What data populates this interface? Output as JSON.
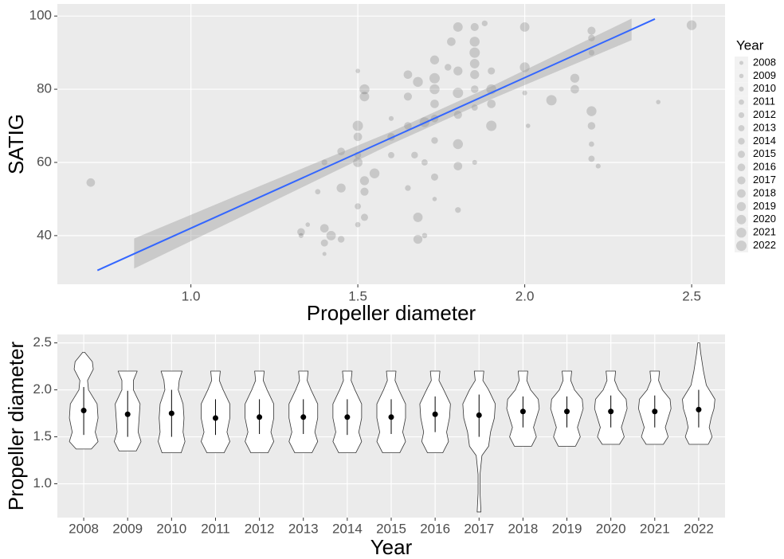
{
  "chart_data": [
    {
      "type": "scatter",
      "x_label": "Propeller diameter",
      "y_label": "SATIG",
      "legend_title": "Year",
      "xlim": [
        0.6,
        2.6
      ],
      "ylim": [
        26.7,
        103.3
      ],
      "xticks": [
        {
          "value": 1,
          "label": "1.0"
        },
        1.5,
        {
          "value": 2,
          "label": "2.0"
        },
        2.5
      ],
      "yticks": [
        40,
        60,
        80,
        100
      ],
      "grid": true,
      "color": "#000000",
      "legend_position": "right",
      "size_legend": [
        2008,
        2009,
        2010,
        2011,
        2012,
        2013,
        2014,
        2015,
        2016,
        2017,
        2018,
        2019,
        2020,
        2021,
        2022
      ],
      "points": {
        "x": [
          1.33,
          1.33,
          1.35,
          1.4,
          1.4,
          1.4,
          1.42,
          1.4,
          1.38,
          1.45,
          1.45,
          1.45,
          1.5,
          1.5,
          1.5,
          1.5,
          1.5,
          1.5,
          1.52,
          1.52,
          1.52,
          1.52,
          1.52,
          1.5,
          1.55,
          1.6,
          1.6,
          1.6,
          1.65,
          1.65,
          1.65,
          1.65,
          1.68,
          1.68,
          1.68,
          1.67,
          1.7,
          1.7,
          1.7,
          1.73,
          1.73,
          1.73,
          1.73,
          1.73,
          1.73,
          1.73,
          1.73,
          1.8,
          1.8,
          1.8,
          1.8,
          1.8,
          1.8,
          1.8,
          1.78,
          1.77,
          1.85,
          1.85,
          1.85,
          1.85,
          1.85,
          1.85,
          1.85,
          1.85,
          1.88,
          1.9,
          1.9,
          1.9,
          1.9,
          2.0,
          2.0,
          2.0,
          2.01,
          2.08,
          2.15,
          2.15,
          2.2,
          2.2,
          2.2,
          2.2,
          2.2,
          2.2,
          2.2,
          2.22,
          0.7,
          2.5,
          2.4
        ],
        "y": [
          41,
          40,
          43,
          60,
          42,
          38,
          40,
          35,
          52,
          39,
          63,
          53,
          70,
          67,
          60,
          48,
          43,
          85,
          80,
          78,
          55,
          52,
          45,
          62,
          57,
          62,
          67,
          72,
          84,
          78,
          70,
          53,
          82,
          45,
          39,
          62,
          71,
          60,
          40,
          88,
          83,
          80,
          76,
          72,
          66,
          56,
          50,
          97,
          85,
          79,
          73,
          65,
          59,
          47,
          93,
          86,
          97,
          93,
          90,
          87,
          84,
          80,
          75,
          60,
          98,
          85,
          80,
          76,
          70,
          97,
          86,
          79,
          70,
          77,
          83,
          80,
          96,
          94,
          90,
          74,
          70,
          65,
          61,
          59,
          54.5,
          97.5,
          76.5
        ],
        "year": [
          2016,
          2010,
          2009,
          2012,
          2018,
          2015,
          2020,
          2008,
          2011,
          2014,
          2016,
          2019,
          2022,
          2018,
          2020,
          2013,
          2011,
          2009,
          2021,
          2020,
          2019,
          2017,
          2015,
          2014,
          2021,
          2013,
          2016,
          2010,
          2018,
          2017,
          2016,
          2012,
          2021,
          2020,
          2019,
          2014,
          2021,
          2013,
          2011,
          2019,
          2022,
          2021,
          2018,
          2016,
          2014,
          2015,
          2009,
          2020,
          2019,
          2022,
          2017,
          2021,
          2018,
          2012,
          2018,
          2014,
          2017,
          2021,
          2022,
          2020,
          2019,
          2016,
          2013,
          2010,
          2012,
          2015,
          2021,
          2018,
          2022,
          2020,
          2021,
          2010,
          2009,
          2022,
          2019,
          2018,
          2017,
          2014,
          2012,
          2021,
          2016,
          2011,
          2013,
          2010,
          2018,
          2021,
          2009
        ]
      },
      "fit": {
        "color": "#3366FF",
        "x": [
          0.72,
          2.39
        ],
        "y": [
          30.5,
          99.2
        ]
      },
      "band": {
        "color": "#999999",
        "x": [
          0.83,
          1.2,
          1.6,
          1.9,
          2.32
        ],
        "lower": [
          31,
          47.3,
          65,
          77.3,
          93.4
        ],
        "upper": [
          39.2,
          53.3,
          68.4,
          80.8,
          99.3
        ]
      }
    },
    {
      "type": "violin",
      "x_label": "Year",
      "y_label": "Propeller diameter",
      "categories": [
        "2008",
        "2009",
        "2010",
        "2011",
        "2012",
        "2013",
        "2014",
        "2015",
        "2016",
        "2017",
        "2018",
        "2019",
        "2020",
        "2021",
        "2022"
      ],
      "ylim": [
        0.64,
        2.59
      ],
      "yticks": [
        {
          "value": 1,
          "label": "1.0"
        },
        1.5,
        {
          "value": 2,
          "label": "2.0"
        },
        2.5
      ],
      "grid": true,
      "violins": [
        {
          "y": [
            2.4,
            2.3,
            2.22,
            2.1,
            2.0,
            1.85,
            1.7,
            1.55,
            1.45,
            1.37
          ],
          "density": [
            0.05,
            0.45,
            0.5,
            0.2,
            0.25,
            0.7,
            0.75,
            0.6,
            0.75,
            0.4
          ],
          "mean": 1.78,
          "lower": 1.52,
          "upper": 2.03
        },
        {
          "y": [
            2.2,
            2.1,
            2.0,
            1.85,
            1.7,
            1.55,
            1.45,
            1.35
          ],
          "density": [
            0.5,
            0.3,
            0.3,
            0.65,
            0.6,
            0.55,
            0.7,
            0.45
          ],
          "mean": 1.74,
          "lower": 1.5,
          "upper": 1.99
        },
        {
          "y": [
            2.2,
            2.1,
            2.0,
            1.85,
            1.7,
            1.55,
            1.45,
            1.33
          ],
          "density": [
            0.55,
            0.4,
            0.35,
            0.6,
            0.65,
            0.6,
            0.7,
            0.5
          ],
          "mean": 1.75,
          "lower": 1.5,
          "upper": 2.0
        },
        {
          "y": [
            2.2,
            2.1,
            2.0,
            1.85,
            1.7,
            1.55,
            1.45,
            1.33
          ],
          "density": [
            0.25,
            0.2,
            0.4,
            0.75,
            0.75,
            0.6,
            0.75,
            0.45
          ],
          "mean": 1.7,
          "lower": 1.52,
          "upper": 1.9
        },
        {
          "y": [
            2.2,
            2.1,
            2.0,
            1.85,
            1.7,
            1.55,
            1.45,
            1.33
          ],
          "density": [
            0.25,
            0.2,
            0.4,
            0.75,
            0.75,
            0.6,
            0.75,
            0.45
          ],
          "mean": 1.71,
          "lower": 1.53,
          "upper": 1.9
        },
        {
          "y": [
            2.2,
            2.1,
            2.0,
            1.85,
            1.7,
            1.55,
            1.45,
            1.33
          ],
          "density": [
            0.25,
            0.2,
            0.4,
            0.75,
            0.75,
            0.6,
            0.75,
            0.45
          ],
          "mean": 1.71,
          "lower": 1.53,
          "upper": 1.9
        },
        {
          "y": [
            2.2,
            2.1,
            2.0,
            1.85,
            1.7,
            1.55,
            1.45,
            1.33
          ],
          "density": [
            0.25,
            0.2,
            0.4,
            0.75,
            0.75,
            0.6,
            0.75,
            0.45
          ],
          "mean": 1.71,
          "lower": 1.52,
          "upper": 1.9
        },
        {
          "y": [
            2.2,
            2.1,
            2.0,
            1.85,
            1.7,
            1.55,
            1.45,
            1.33
          ],
          "density": [
            0.25,
            0.2,
            0.4,
            0.75,
            0.75,
            0.6,
            0.75,
            0.45
          ],
          "mean": 1.71,
          "lower": 1.53,
          "upper": 1.9
        },
        {
          "y": [
            2.2,
            2.1,
            2.0,
            1.85,
            1.7,
            1.55,
            1.45,
            1.33
          ],
          "density": [
            0.25,
            0.2,
            0.45,
            0.8,
            0.75,
            0.6,
            0.7,
            0.4
          ],
          "mean": 1.74,
          "lower": 1.55,
          "upper": 1.93
        },
        {
          "y": [
            2.2,
            2.1,
            2.0,
            1.85,
            1.7,
            1.55,
            1.4,
            1.3,
            1.1,
            0.9,
            0.7
          ],
          "density": [
            0.25,
            0.2,
            0.5,
            0.85,
            0.8,
            0.6,
            0.5,
            0.15,
            0.05,
            0.05,
            0.1
          ],
          "mean": 1.73,
          "lower": 1.5,
          "upper": 1.95
        },
        {
          "y": [
            2.2,
            2.1,
            2.0,
            1.9,
            1.8,
            1.7,
            1.6,
            1.5,
            1.4
          ],
          "density": [
            0.25,
            0.2,
            0.4,
            0.8,
            0.85,
            0.7,
            0.55,
            0.7,
            0.45
          ],
          "mean": 1.77,
          "lower": 1.6,
          "upper": 1.93
        },
        {
          "y": [
            2.2,
            2.1,
            2.0,
            1.9,
            1.8,
            1.7,
            1.6,
            1.5,
            1.4
          ],
          "density": [
            0.25,
            0.2,
            0.4,
            0.8,
            0.85,
            0.7,
            0.55,
            0.7,
            0.45
          ],
          "mean": 1.77,
          "lower": 1.6,
          "upper": 1.93
        },
        {
          "y": [
            2.2,
            2.1,
            2.0,
            1.9,
            1.8,
            1.7,
            1.6,
            1.5,
            1.42
          ],
          "density": [
            0.25,
            0.2,
            0.4,
            0.8,
            0.85,
            0.7,
            0.55,
            0.7,
            0.45
          ],
          "mean": 1.77,
          "lower": 1.6,
          "upper": 1.94
        },
        {
          "y": [
            2.2,
            2.1,
            2.0,
            1.9,
            1.8,
            1.7,
            1.6,
            1.5,
            1.42
          ],
          "density": [
            0.25,
            0.2,
            0.4,
            0.8,
            0.85,
            0.7,
            0.55,
            0.7,
            0.45
          ],
          "mean": 1.77,
          "lower": 1.6,
          "upper": 1.94
        },
        {
          "y": [
            2.5,
            2.4,
            2.2,
            2.05,
            1.9,
            1.8,
            1.7,
            1.6,
            1.5,
            1.42
          ],
          "density": [
            0.05,
            0.1,
            0.25,
            0.4,
            0.85,
            0.8,
            0.65,
            0.55,
            0.7,
            0.5
          ],
          "mean": 1.79,
          "lower": 1.6,
          "upper": 2.0
        }
      ]
    }
  ]
}
